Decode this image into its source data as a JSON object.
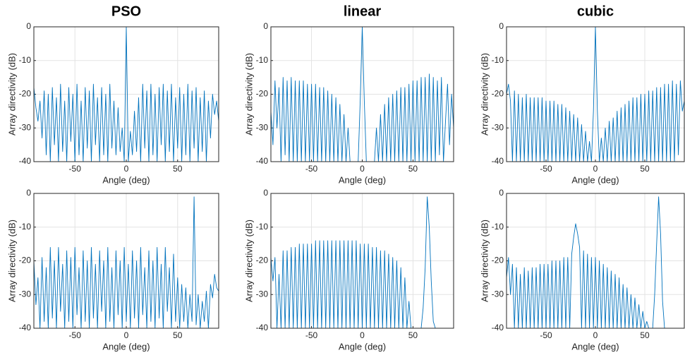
{
  "chart_data": [
    {
      "type": "line",
      "title": "PSO",
      "xlabel": "Angle (deg)",
      "ylabel": "Array directivity (dB)",
      "xlim": [
        -90,
        90
      ],
      "xticks": [
        -50,
        0,
        50
      ],
      "ylim": [
        -40,
        0
      ],
      "yticks": [
        -40,
        -30,
        -20,
        -10,
        0
      ],
      "grid": true,
      "color": "#0072bd",
      "x": [
        -90,
        -88,
        -86,
        -84,
        -82,
        -80,
        -78,
        -76,
        -74,
        -72,
        -70,
        -68,
        -66,
        -64,
        -62,
        -60,
        -58,
        -56,
        -54,
        -52,
        -50,
        -48,
        -46,
        -44,
        -42,
        -40,
        -38,
        -36,
        -34,
        -32,
        -30,
        -28,
        -26,
        -24,
        -22,
        -20,
        -18,
        -16,
        -14,
        -12,
        -10,
        -8,
        -6,
        -4,
        -2,
        0,
        2,
        4,
        6,
        8,
        10,
        12,
        14,
        16,
        18,
        20,
        22,
        24,
        26,
        28,
        30,
        32,
        34,
        36,
        38,
        40,
        42,
        44,
        46,
        48,
        50,
        52,
        54,
        56,
        58,
        60,
        62,
        64,
        66,
        68,
        70,
        72,
        74,
        76,
        78,
        80,
        82,
        84,
        86,
        88,
        90
      ],
      "values": [
        -18,
        -24,
        -28,
        -22,
        -33,
        -19,
        -38,
        -20,
        -40,
        -18,
        -35,
        -21,
        -40,
        -17,
        -37,
        -22,
        -40,
        -18,
        -34,
        -20,
        -40,
        -17,
        -38,
        -22,
        -40,
        -18,
        -36,
        -19,
        -40,
        -17,
        -35,
        -21,
        -40,
        -18,
        -38,
        -20,
        -40,
        -17,
        -36,
        -22,
        -38,
        -24,
        -37,
        -30,
        -40,
        0,
        -40,
        -31,
        -38,
        -25,
        -37,
        -21,
        -40,
        -17,
        -36,
        -19,
        -40,
        -17,
        -38,
        -20,
        -40,
        -18,
        -35,
        -17,
        -40,
        -19,
        -37,
        -17,
        -40,
        -21,
        -36,
        -18,
        -40,
        -20,
        -38,
        -17,
        -40,
        -19,
        -36,
        -18,
        -40,
        -21,
        -37,
        -19,
        -40,
        -22,
        -33,
        -20,
        -26,
        -22,
        -28
      ]
    },
    {
      "type": "line",
      "title": "linear",
      "xlabel": "Angle (deg)",
      "ylabel": "Array directivity (dB)",
      "xlim": [
        -90,
        90
      ],
      "xticks": [
        -50,
        0,
        50
      ],
      "ylim": [
        -40,
        0
      ],
      "yticks": [
        -40,
        -30,
        -20,
        -10,
        0
      ],
      "grid": true,
      "color": "#0072bd",
      "x": [
        -90,
        -88,
        -86,
        -84,
        -82,
        -80,
        -78,
        -76,
        -74,
        -72,
        -70,
        -68,
        -66,
        -64,
        -62,
        -60,
        -58,
        -56,
        -54,
        -52,
        -50,
        -48,
        -46,
        -44,
        -42,
        -40,
        -38,
        -36,
        -34,
        -32,
        -30,
        -28,
        -26,
        -24,
        -22,
        -20,
        -18,
        -16,
        -14,
        -12,
        -10,
        -8,
        -6,
        -4,
        -2,
        0,
        2,
        4,
        6,
        8,
        10,
        12,
        14,
        16,
        18,
        20,
        22,
        24,
        26,
        28,
        30,
        32,
        34,
        36,
        38,
        40,
        42,
        44,
        46,
        48,
        50,
        52,
        54,
        56,
        58,
        60,
        62,
        64,
        66,
        68,
        70,
        72,
        74,
        76,
        78,
        80,
        82,
        84,
        86,
        88,
        90
      ],
      "values": [
        -25,
        -35,
        -16,
        -30,
        -18,
        -40,
        -15,
        -38,
        -16,
        -40,
        -15,
        -40,
        -16,
        -40,
        -16,
        -40,
        -16,
        -40,
        -17,
        -40,
        -17,
        -40,
        -17,
        -40,
        -18,
        -40,
        -18,
        -40,
        -19,
        -40,
        -20,
        -40,
        -21,
        -40,
        -23,
        -40,
        -26,
        -40,
        -30,
        -40,
        -40,
        -40,
        -40,
        -40,
        -22,
        0,
        -22,
        -40,
        -40,
        -40,
        -40,
        -40,
        -30,
        -40,
        -26,
        -40,
        -23,
        -40,
        -21,
        -40,
        -20,
        -40,
        -19,
        -40,
        -18,
        -40,
        -18,
        -40,
        -17,
        -40,
        -16,
        -40,
        -16,
        -40,
        -15,
        -40,
        -15,
        -40,
        -14,
        -40,
        -15,
        -40,
        -16,
        -38,
        -15,
        -40,
        -28,
        -17,
        -35,
        -20,
        -30
      ]
    },
    {
      "type": "line",
      "title": "cubic",
      "xlabel": "Angle (deg)",
      "ylabel": "Array directivity (dB)",
      "xlim": [
        -90,
        90
      ],
      "xticks": [
        -50,
        0,
        50
      ],
      "ylim": [
        -40,
        0
      ],
      "yticks": [
        -40,
        -30,
        -20,
        -10,
        0
      ],
      "grid": true,
      "color": "#0072bd",
      "x": [
        -90,
        -88,
        -86,
        -84,
        -82,
        -80,
        -78,
        -76,
        -74,
        -72,
        -70,
        -68,
        -66,
        -64,
        -62,
        -60,
        -58,
        -56,
        -54,
        -52,
        -50,
        -48,
        -46,
        -44,
        -42,
        -40,
        -38,
        -36,
        -34,
        -32,
        -30,
        -28,
        -26,
        -24,
        -22,
        -20,
        -18,
        -16,
        -14,
        -12,
        -10,
        -8,
        -6,
        -4,
        -2,
        0,
        2,
        4,
        6,
        8,
        10,
        12,
        14,
        16,
        18,
        20,
        22,
        24,
        26,
        28,
        30,
        32,
        34,
        36,
        38,
        40,
        42,
        44,
        46,
        48,
        50,
        52,
        54,
        56,
        58,
        60,
        62,
        64,
        66,
        68,
        70,
        72,
        74,
        76,
        78,
        80,
        82,
        84,
        86,
        88,
        90
      ],
      "values": [
        -20,
        -17,
        -22,
        -40,
        -19,
        -40,
        -20,
        -40,
        -21,
        -40,
        -20,
        -40,
        -21,
        -40,
        -21,
        -40,
        -21,
        -40,
        -21,
        -40,
        -22,
        -40,
        -22,
        -40,
        -22,
        -40,
        -23,
        -40,
        -23,
        -40,
        -24,
        -40,
        -25,
        -40,
        -26,
        -40,
        -27,
        -40,
        -29,
        -40,
        -31,
        -40,
        -34,
        -40,
        -25,
        0,
        -25,
        -40,
        -33,
        -40,
        -30,
        -40,
        -28,
        -40,
        -27,
        -40,
        -25,
        -40,
        -24,
        -40,
        -23,
        -40,
        -22,
        -40,
        -21,
        -40,
        -21,
        -40,
        -20,
        -40,
        -20,
        -40,
        -19,
        -40,
        -19,
        -40,
        -18,
        -40,
        -18,
        -40,
        -17,
        -40,
        -17,
        -40,
        -16,
        -40,
        -17,
        -38,
        -16,
        -25,
        -22
      ]
    },
    {
      "type": "line",
      "xlabel": "Angle (deg)",
      "ylabel": "Array directivity (dB)",
      "xlim": [
        -90,
        90
      ],
      "xticks": [
        -50,
        0,
        50
      ],
      "ylim": [
        -40,
        0
      ],
      "yticks": [
        -40,
        -30,
        -20,
        -10,
        0
      ],
      "grid": true,
      "color": "#0072bd",
      "x": [
        -90,
        -88,
        -86,
        -84,
        -82,
        -80,
        -78,
        -76,
        -74,
        -72,
        -70,
        -68,
        -66,
        -64,
        -62,
        -60,
        -58,
        -56,
        -54,
        -52,
        -50,
        -48,
        -46,
        -44,
        -42,
        -40,
        -38,
        -36,
        -34,
        -32,
        -30,
        -28,
        -26,
        -24,
        -22,
        -20,
        -18,
        -16,
        -14,
        -12,
        -10,
        -8,
        -6,
        -4,
        -2,
        0,
        2,
        4,
        6,
        8,
        10,
        12,
        14,
        16,
        18,
        20,
        22,
        24,
        26,
        28,
        30,
        32,
        34,
        36,
        38,
        40,
        42,
        44,
        46,
        48,
        50,
        52,
        54,
        56,
        58,
        60,
        62,
        64,
        66,
        68,
        70,
        72,
        74,
        76,
        78,
        80,
        82,
        84,
        86,
        88,
        90
      ],
      "values": [
        -20,
        -33,
        -25,
        -40,
        -19,
        -38,
        -22,
        -40,
        -16,
        -37,
        -20,
        -40,
        -16,
        -35,
        -21,
        -40,
        -17,
        -38,
        -19,
        -40,
        -16,
        -36,
        -22,
        -40,
        -17,
        -38,
        -20,
        -40,
        -16,
        -37,
        -21,
        -40,
        -17,
        -35,
        -20,
        -40,
        -16,
        -38,
        -22,
        -40,
        -17,
        -36,
        -20,
        -40,
        -16,
        -38,
        -21,
        -40,
        -17,
        -37,
        -20,
        -40,
        -16,
        -36,
        -22,
        -40,
        -17,
        -38,
        -20,
        -40,
        -16,
        -37,
        -21,
        -40,
        -16,
        -35,
        -22,
        -40,
        -18,
        -38,
        -25,
        -40,
        -27,
        -38,
        -28,
        -40,
        -30,
        -38,
        -1,
        -39,
        -30,
        -40,
        -32,
        -38,
        -29,
        -40,
        -27,
        -31,
        -24,
        -28,
        -29
      ]
    },
    {
      "type": "line",
      "xlabel": "Angle (deg)",
      "ylabel": "Array directivity (dB)",
      "xlim": [
        -90,
        90
      ],
      "xticks": [
        -50,
        0,
        50
      ],
      "ylim": [
        -40,
        0
      ],
      "yticks": [
        -40,
        -30,
        -20,
        -10,
        0
      ],
      "grid": true,
      "color": "#0072bd",
      "x": [
        -90,
        -88,
        -86,
        -84,
        -82,
        -80,
        -78,
        -76,
        -74,
        -72,
        -70,
        -68,
        -66,
        -64,
        -62,
        -60,
        -58,
        -56,
        -54,
        -52,
        -50,
        -48,
        -46,
        -44,
        -42,
        -40,
        -38,
        -36,
        -34,
        -32,
        -30,
        -28,
        -26,
        -24,
        -22,
        -20,
        -18,
        -16,
        -14,
        -12,
        -10,
        -8,
        -6,
        -4,
        -2,
        0,
        2,
        4,
        6,
        8,
        10,
        12,
        14,
        16,
        18,
        20,
        22,
        24,
        26,
        28,
        30,
        32,
        34,
        36,
        38,
        40,
        42,
        44,
        46,
        48,
        50,
        52,
        54,
        56,
        58,
        60,
        62,
        64,
        66,
        68,
        70,
        72,
        74,
        76,
        78,
        80,
        82,
        84,
        86,
        88,
        90
      ],
      "values": [
        -19,
        -26,
        -19,
        -40,
        -24,
        -40,
        -17,
        -40,
        -17,
        -40,
        -16,
        -40,
        -16,
        -40,
        -15,
        -40,
        -15,
        -40,
        -15,
        -40,
        -15,
        -40,
        -14,
        -40,
        -14,
        -40,
        -14,
        -40,
        -14,
        -40,
        -14,
        -40,
        -14,
        -40,
        -14,
        -40,
        -14,
        -40,
        -14,
        -40,
        -14,
        -40,
        -14,
        -40,
        -15,
        -40,
        -15,
        -40,
        -15,
        -40,
        -16,
        -40,
        -16,
        -40,
        -17,
        -40,
        -17,
        -40,
        -18,
        -40,
        -19,
        -40,
        -20,
        -40,
        -22,
        -40,
        -25,
        -40,
        -32,
        -40,
        -40,
        -40,
        -40,
        -40,
        -40,
        -34,
        -22,
        -1,
        -10,
        -26,
        -38,
        -40,
        -40,
        -40,
        -40,
        -40,
        -40,
        -40,
        -40,
        -40,
        -40
      ]
    },
    {
      "type": "line",
      "xlabel": "Angle (deg)",
      "ylabel": "Array directivity (dB)",
      "xlim": [
        -90,
        90
      ],
      "xticks": [
        -50,
        0,
        50
      ],
      "ylim": [
        -40,
        0
      ],
      "yticks": [
        -40,
        -30,
        -20,
        -10,
        0
      ],
      "grid": true,
      "color": "#0072bd",
      "x": [
        -90,
        -88,
        -86,
        -84,
        -82,
        -80,
        -78,
        -76,
        -74,
        -72,
        -70,
        -68,
        -66,
        -64,
        -62,
        -60,
        -58,
        -56,
        -54,
        -52,
        -50,
        -48,
        -46,
        -44,
        -42,
        -40,
        -38,
        -36,
        -34,
        -32,
        -30,
        -28,
        -26,
        -24,
        -22,
        -20,
        -18,
        -16,
        -14,
        -12,
        -10,
        -8,
        -6,
        -4,
        -2,
        0,
        2,
        4,
        6,
        8,
        10,
        12,
        14,
        16,
        18,
        20,
        22,
        24,
        26,
        28,
        30,
        32,
        34,
        36,
        38,
        40,
        42,
        44,
        46,
        48,
        50,
        52,
        54,
        56,
        58,
        60,
        62,
        64,
        66,
        68,
        70,
        72,
        74,
        76,
        78,
        80,
        82,
        84,
        86,
        88,
        90
      ],
      "values": [
        -25,
        -19,
        -30,
        -21,
        -40,
        -22,
        -40,
        -24,
        -40,
        -22,
        -40,
        -23,
        -40,
        -22,
        -40,
        -22,
        -40,
        -21,
        -40,
        -21,
        -40,
        -21,
        -40,
        -20,
        -40,
        -20,
        -40,
        -20,
        -40,
        -19,
        -40,
        -19,
        -40,
        -18,
        -13,
        -9,
        -12,
        -16,
        -40,
        -17,
        -40,
        -18,
        -40,
        -19,
        -40,
        -19,
        -40,
        -20,
        -40,
        -21,
        -40,
        -22,
        -40,
        -23,
        -40,
        -24,
        -40,
        -25,
        -40,
        -27,
        -40,
        -28,
        -40,
        -30,
        -40,
        -31,
        -40,
        -33,
        -40,
        -35,
        -40,
        -38,
        -40,
        -40,
        -40,
        -30,
        -15,
        -1,
        -12,
        -32,
        -40,
        -40,
        -40,
        -40,
        -40,
        -40,
        -40,
        -40,
        -40,
        -40,
        -40
      ]
    }
  ]
}
